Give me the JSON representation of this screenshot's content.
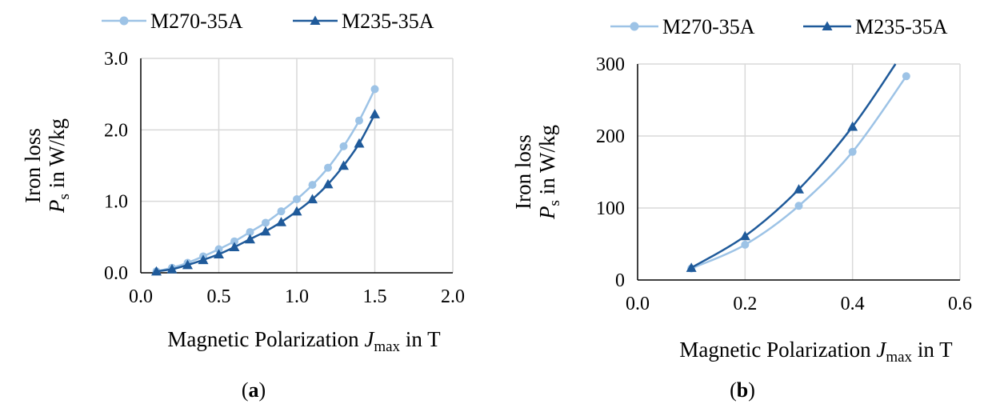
{
  "colors": {
    "series_light": "#9dc3e6",
    "series_dark": "#1f5a9a",
    "grid": "#d9d9d9",
    "axis": "#000000"
  },
  "chart_data": [
    {
      "id": "a",
      "type": "line",
      "caption": "a",
      "legend_position": "top",
      "grid": true,
      "xlabel": {
        "prefix": "Magnetic Polarization ",
        "sym": "J",
        "sub": "max",
        "suffix": " in T"
      },
      "ylabel": {
        "line1": "Iron loss",
        "sym": "P",
        "sub": "s",
        "suffix": " in W/kg"
      },
      "xlim": [
        0.0,
        2.0
      ],
      "ylim": [
        0.0,
        3.0
      ],
      "xticks": [
        0.0,
        0.5,
        1.0,
        1.5,
        2.0
      ],
      "yticks": [
        0.0,
        1.0,
        2.0,
        3.0
      ],
      "xtick_labels": [
        "0.0",
        "0.5",
        "1.0",
        "1.5",
        "2.0"
      ],
      "ytick_labels": [
        "0.0",
        "1.0",
        "2.0",
        "3.0"
      ],
      "series": [
        {
          "name": "M270-35A",
          "marker": "circle",
          "color": "#9dc3e6",
          "x": [
            0.1,
            0.2,
            0.3,
            0.4,
            0.5,
            0.6,
            0.7,
            0.8,
            0.9,
            1.0,
            1.1,
            1.2,
            1.3,
            1.4,
            1.5
          ],
          "y": [
            0.02,
            0.07,
            0.14,
            0.23,
            0.33,
            0.44,
            0.57,
            0.7,
            0.86,
            1.03,
            1.23,
            1.47,
            1.77,
            2.13,
            2.57
          ]
        },
        {
          "name": "M235-35A",
          "marker": "triangle",
          "color": "#1f5a9a",
          "x": [
            0.1,
            0.2,
            0.3,
            0.4,
            0.5,
            0.6,
            0.7,
            0.8,
            0.9,
            1.0,
            1.1,
            1.2,
            1.3,
            1.4,
            1.5
          ],
          "y": [
            0.02,
            0.05,
            0.11,
            0.18,
            0.26,
            0.36,
            0.47,
            0.58,
            0.71,
            0.86,
            1.03,
            1.24,
            1.5,
            1.81,
            2.22
          ]
        }
      ]
    },
    {
      "id": "b",
      "type": "line",
      "caption": "b",
      "legend_position": "top",
      "grid": true,
      "xlabel": {
        "prefix": "Magnetic Polarization ",
        "sym": "J",
        "sub": "max",
        "suffix": " in T"
      },
      "ylabel": {
        "line1": "Iron loss",
        "sym": "P",
        "sub": "s",
        "suffix": " in W/kg"
      },
      "xlim": [
        0.0,
        0.6
      ],
      "ylim": [
        0,
        300
      ],
      "xticks": [
        0.0,
        0.2,
        0.4,
        0.6
      ],
      "yticks": [
        0,
        100,
        200,
        300
      ],
      "xtick_labels": [
        "0.0",
        "0.2",
        "0.4",
        "0.6"
      ],
      "ytick_labels": [
        "0",
        "100",
        "200",
        "300"
      ],
      "series": [
        {
          "name": "M270-35A",
          "marker": "circle",
          "color": "#9dc3e6",
          "x": [
            0.1,
            0.2,
            0.3,
            0.4,
            0.5
          ],
          "y": [
            16,
            49,
            103,
            178,
            283
          ]
        },
        {
          "name": "M235-35A",
          "marker": "triangle",
          "color": "#1f5a9a",
          "x": [
            0.1,
            0.2,
            0.3,
            0.4,
            0.48
          ],
          "y": [
            17,
            61,
            126,
            213,
            300
          ]
        }
      ]
    }
  ]
}
